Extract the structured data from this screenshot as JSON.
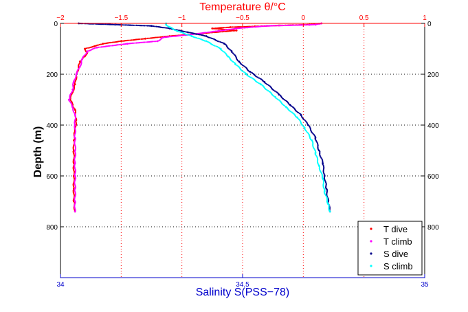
{
  "chart_data": {
    "type": "scatter",
    "title": "Temperature θ/°C",
    "ylabel": "Depth (m)",
    "xlabel": "Salinity S(PSS−78)",
    "top_axis": {
      "label": "Temperature θ/°C",
      "range": [
        -2,
        1
      ],
      "ticks": [
        "−2",
        "−1.5",
        "−1",
        "−0.5",
        "0",
        "0.5",
        "1"
      ],
      "color": "#ff0000"
    },
    "bottom_axis": {
      "label": "Salinity S(PSS−78)",
      "range": [
        34,
        35
      ],
      "ticks": [
        "34",
        "34.5",
        "35"
      ],
      "color": "#0000cc"
    },
    "y_axis": {
      "range": [
        0,
        1000
      ],
      "reversed": true,
      "ticks": [
        "0",
        "200",
        "400",
        "600",
        "800"
      ],
      "tick_values": [
        0,
        200,
        400,
        600,
        800
      ]
    },
    "grid": true,
    "legend_position": "bottom-right",
    "series": [
      {
        "name": "T dive",
        "axis": "top",
        "color": "#ff0000",
        "points": [
          [
            0.15,
            0
          ],
          [
            0.05,
            5
          ],
          [
            -0.2,
            8
          ],
          [
            -0.4,
            12
          ],
          [
            -0.6,
            15
          ],
          [
            -0.75,
            20
          ],
          [
            -0.55,
            28
          ],
          [
            -0.8,
            38
          ],
          [
            -1.1,
            50
          ],
          [
            -1.3,
            60
          ],
          [
            -1.5,
            70
          ],
          [
            -1.65,
            80
          ],
          [
            -1.72,
            90
          ],
          [
            -1.8,
            100
          ],
          [
            -1.78,
            115
          ],
          [
            -1.8,
            130
          ],
          [
            -1.84,
            150
          ],
          [
            -1.85,
            170
          ],
          [
            -1.86,
            190
          ],
          [
            -1.87,
            210
          ],
          [
            -1.88,
            240
          ],
          [
            -1.9,
            270
          ],
          [
            -1.92,
            300
          ],
          [
            -1.9,
            320
          ],
          [
            -1.88,
            340
          ],
          [
            -1.87,
            380
          ],
          [
            -1.88,
            420
          ],
          [
            -1.89,
            460
          ],
          [
            -1.89,
            500
          ],
          [
            -1.89,
            550
          ],
          [
            -1.89,
            600
          ],
          [
            -1.89,
            650
          ],
          [
            -1.89,
            700
          ],
          [
            -1.88,
            740
          ]
        ]
      },
      {
        "name": "T climb",
        "axis": "top",
        "color": "#ff00ff",
        "points": [
          [
            0.15,
            0
          ],
          [
            0.1,
            5
          ],
          [
            -0.3,
            10
          ],
          [
            -0.55,
            20
          ],
          [
            -0.7,
            30
          ],
          [
            -0.95,
            45
          ],
          [
            -1.15,
            55
          ],
          [
            -1.2,
            70
          ],
          [
            -1.45,
            80
          ],
          [
            -1.7,
            95
          ],
          [
            -1.78,
            110
          ],
          [
            -1.82,
            140
          ],
          [
            -1.84,
            170
          ],
          [
            -1.87,
            200
          ],
          [
            -1.89,
            230
          ],
          [
            -1.9,
            260
          ],
          [
            -1.93,
            300
          ],
          [
            -1.9,
            330
          ],
          [
            -1.88,
            360
          ],
          [
            -1.88,
            400
          ],
          [
            -1.88,
            450
          ],
          [
            -1.88,
            500
          ],
          [
            -1.88,
            550
          ],
          [
            -1.88,
            600
          ],
          [
            -1.88,
            650
          ],
          [
            -1.88,
            700
          ],
          [
            -1.88,
            740
          ]
        ]
      },
      {
        "name": "S dive",
        "axis": "bottom",
        "color": "#00008b",
        "points": [
          [
            34.05,
            0
          ],
          [
            34.15,
            5
          ],
          [
            34.25,
            10
          ],
          [
            34.3,
            20
          ],
          [
            34.35,
            35
          ],
          [
            34.4,
            50
          ],
          [
            34.45,
            80
          ],
          [
            34.47,
            110
          ],
          [
            34.49,
            150
          ],
          [
            34.52,
            190
          ],
          [
            34.56,
            230
          ],
          [
            34.6,
            280
          ],
          [
            34.63,
            320
          ],
          [
            34.66,
            360
          ],
          [
            34.68,
            400
          ],
          [
            34.7,
            450
          ],
          [
            34.71,
            500
          ],
          [
            34.72,
            550
          ],
          [
            34.725,
            600
          ],
          [
            34.73,
            650
          ],
          [
            34.735,
            700
          ],
          [
            34.74,
            740
          ]
        ]
      },
      {
        "name": "S climb",
        "axis": "bottom",
        "color": "#00ffff",
        "points": [
          [
            34.29,
            0
          ],
          [
            34.29,
            5
          ],
          [
            34.3,
            15
          ],
          [
            34.32,
            30
          ],
          [
            34.36,
            50
          ],
          [
            34.4,
            70
          ],
          [
            34.44,
            100
          ],
          [
            34.46,
            130
          ],
          [
            34.48,
            160
          ],
          [
            34.51,
            200
          ],
          [
            34.55,
            240
          ],
          [
            34.59,
            290
          ],
          [
            34.62,
            330
          ],
          [
            34.65,
            370
          ],
          [
            34.67,
            410
          ],
          [
            34.69,
            460
          ],
          [
            34.7,
            510
          ],
          [
            34.71,
            560
          ],
          [
            34.72,
            610
          ],
          [
            34.725,
            660
          ],
          [
            34.735,
            710
          ],
          [
            34.74,
            740
          ]
        ]
      }
    ]
  }
}
